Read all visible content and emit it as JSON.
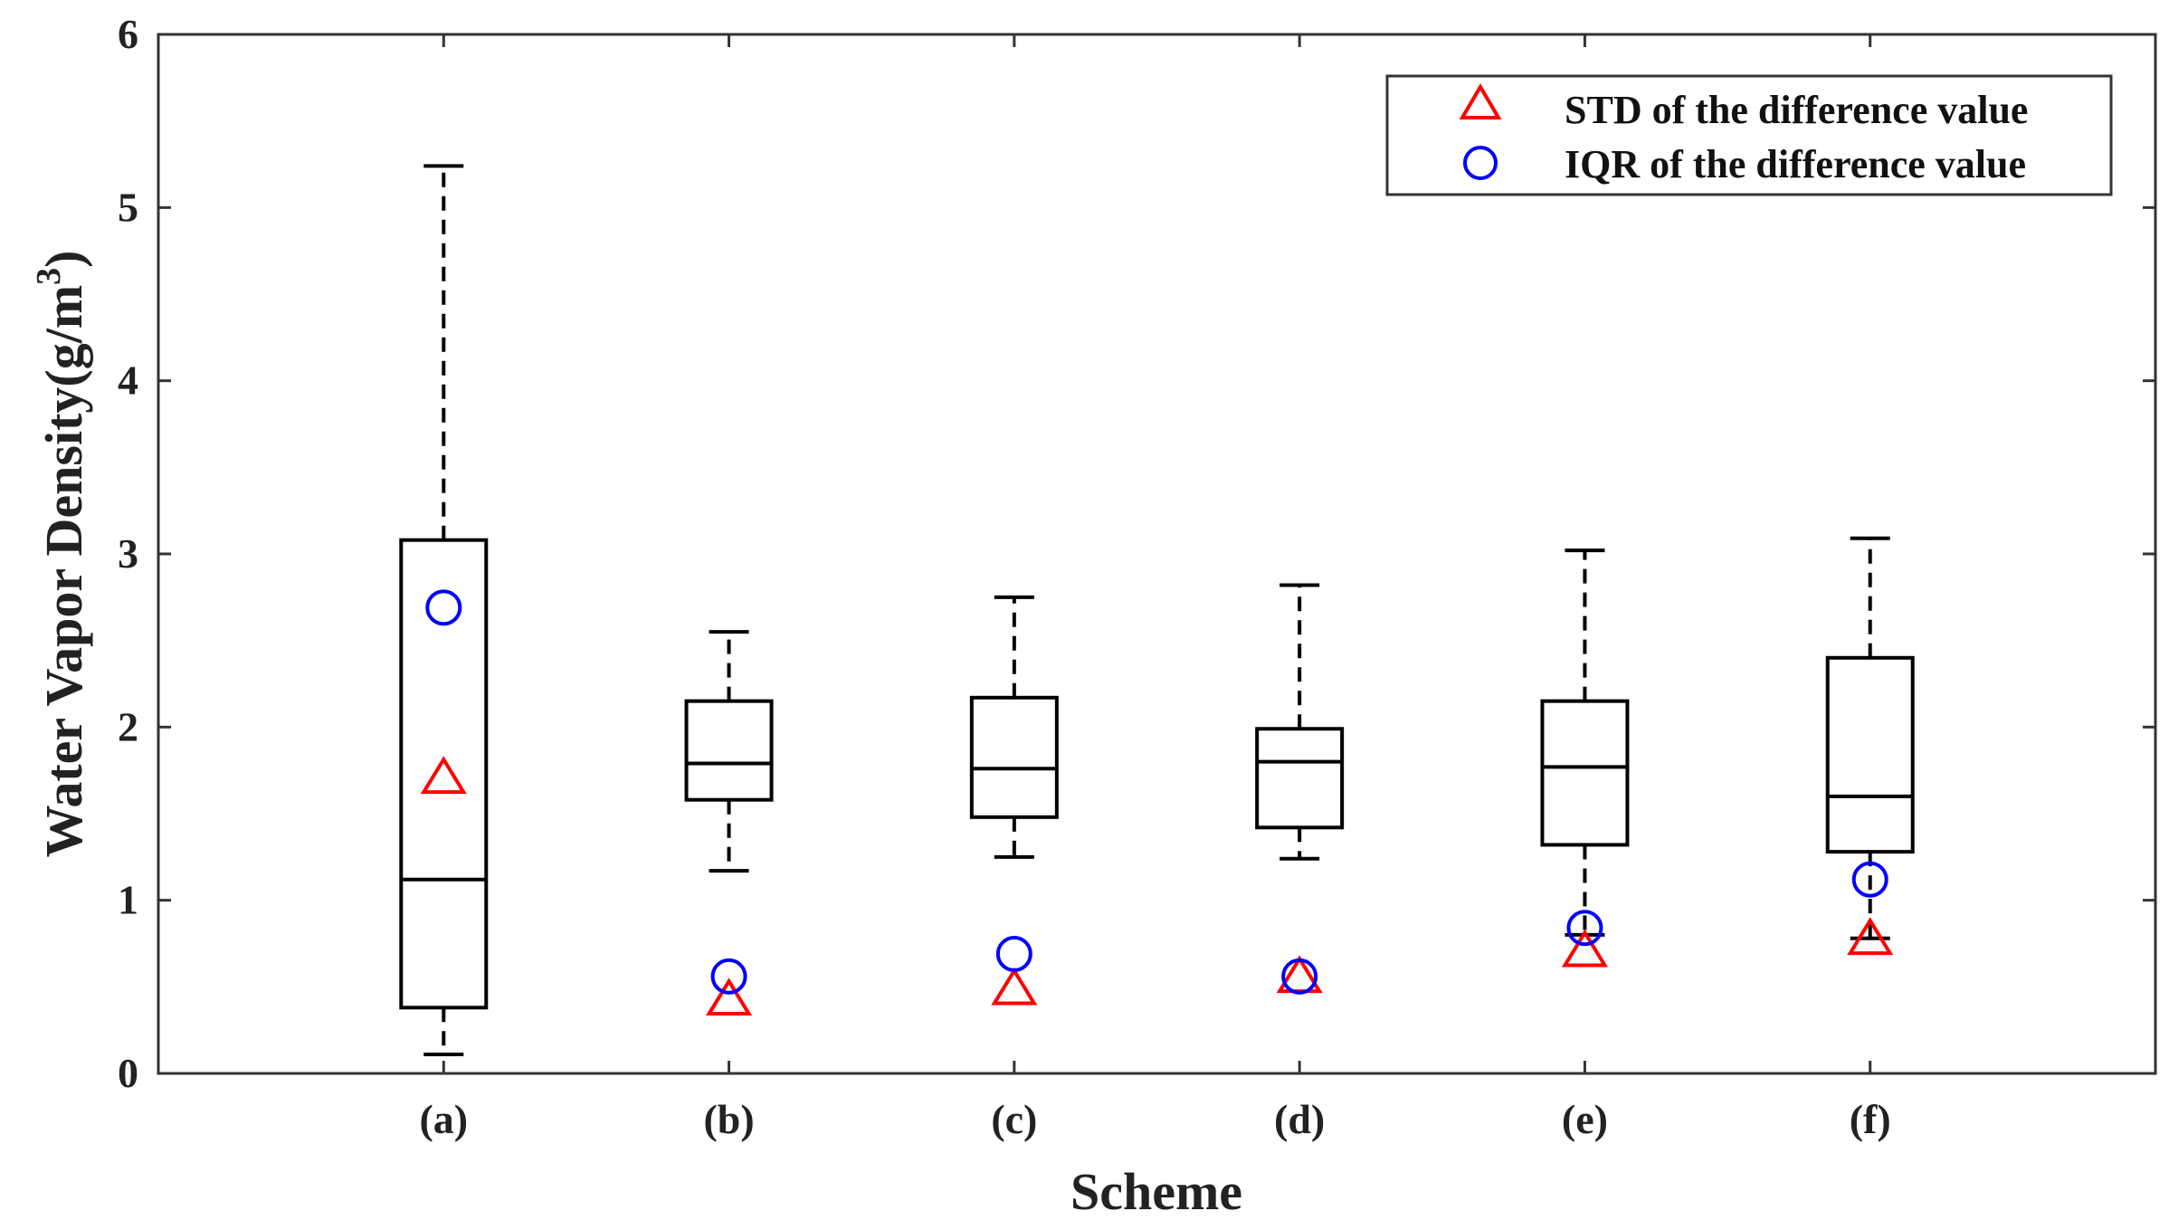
{
  "chart_data": {
    "type": "boxplot",
    "title": "",
    "xlabel": "Scheme",
    "ylabel": "Water Vapor Density(g/m",
    "ylabel_superscript": "3",
    "ylabel_close": ")",
    "ylim": [
      0,
      6
    ],
    "yticks": [
      0,
      1,
      2,
      3,
      4,
      5,
      6
    ],
    "categories": [
      "(a)",
      "(b)",
      "(c)",
      "(d)",
      "(e)",
      "(f)"
    ],
    "boxes": [
      {
        "name": "(a)",
        "whisker_low": 0.11,
        "q1": 0.38,
        "median": 1.12,
        "q3": 3.08,
        "whisker_high": 5.24
      },
      {
        "name": "(b)",
        "whisker_low": 1.17,
        "q1": 1.58,
        "median": 1.79,
        "q3": 2.15,
        "whisker_high": 2.55
      },
      {
        "name": "(c)",
        "whisker_low": 1.25,
        "q1": 1.48,
        "median": 1.76,
        "q3": 2.17,
        "whisker_high": 2.75
      },
      {
        "name": "(d)",
        "whisker_low": 1.24,
        "q1": 1.42,
        "median": 1.8,
        "q3": 1.99,
        "whisker_high": 2.82
      },
      {
        "name": "(e)",
        "whisker_low": 0.8,
        "q1": 1.32,
        "median": 1.77,
        "q3": 2.15,
        "whisker_high": 3.02
      },
      {
        "name": "(f)",
        "whisker_low": 0.78,
        "q1": 1.28,
        "median": 1.6,
        "q3": 2.4,
        "whisker_high": 3.09
      }
    ],
    "series": [
      {
        "name": "STD of the difference value",
        "marker": "triangle",
        "color": "#ff0000",
        "values": [
          1.7,
          0.42,
          0.48,
          0.55,
          0.7,
          0.77
        ]
      },
      {
        "name": "IQR of the difference value",
        "marker": "circle",
        "color": "#0000ff",
        "values": [
          2.69,
          0.56,
          0.69,
          0.56,
          0.84,
          1.12
        ]
      }
    ],
    "legend_position": "top-right",
    "box_color": "#000000"
  }
}
